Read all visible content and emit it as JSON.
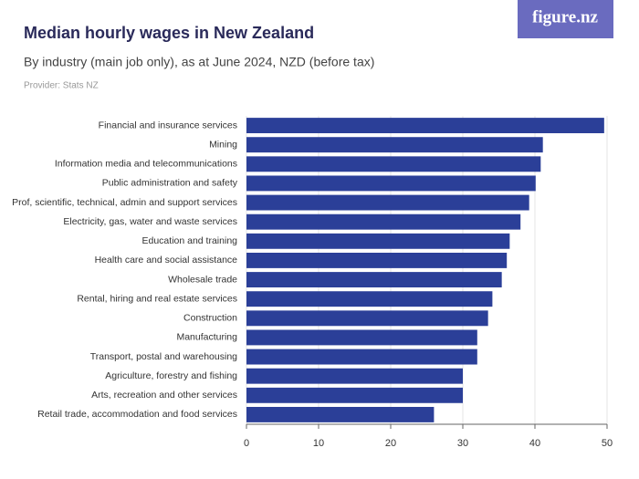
{
  "logo": "figure.nz",
  "chart_data": {
    "type": "bar",
    "orientation": "horizontal",
    "title": "Median hourly wages in New Zealand",
    "subtitle": "By industry (main job only), as at June 2024, NZD (before tax)",
    "source": "Provider: Stats NZ",
    "categories": [
      "Financial and insurance services",
      "Mining",
      "Information media and telecommunications",
      "Public administration and safety",
      "Prof, scientific, technical, admin and support services",
      "Electricity, gas, water and waste services",
      "Education and training",
      "Health care and social assistance",
      "Wholesale trade",
      "Rental, hiring and real estate services",
      "Construction",
      "Manufacturing",
      "Transport, postal and warehousing",
      "Agriculture, forestry and fishing",
      "Arts, recreation and other services",
      "Retail trade, accommodation and food services"
    ],
    "values": [
      49.6,
      41.1,
      40.8,
      40.1,
      39.2,
      38.0,
      36.5,
      36.1,
      35.4,
      34.1,
      33.5,
      32.0,
      32.0,
      30.0,
      30.0,
      26.0
    ],
    "color": "#2b3f98",
    "xlim": [
      0,
      50
    ],
    "xticks": [
      0,
      10,
      20,
      30,
      40,
      50
    ],
    "grid": true
  }
}
